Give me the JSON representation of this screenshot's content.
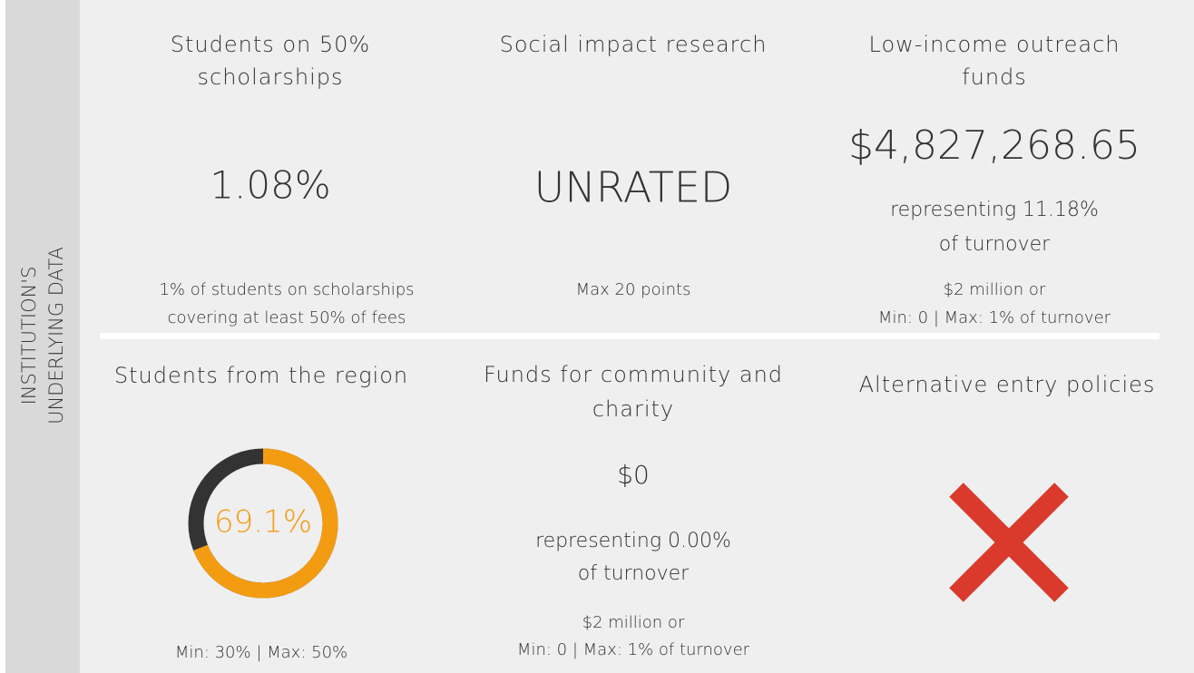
{
  "sidebar": {
    "lines": [
      "INSTITUTION'S",
      "UNDERLYING DATA"
    ]
  },
  "cards": [
    {
      "title": [
        "Students on 50%",
        "scholarships"
      ],
      "value": "1.08%",
      "footer": [
        "1% of students on scholarships",
        "covering at least 50% of fees"
      ]
    },
    {
      "title": [
        "Social impact research"
      ],
      "value": "UNRATED",
      "footer": [
        "Max 20 points"
      ]
    },
    {
      "title": [
        "Low-income outreach",
        "funds"
      ],
      "value": "$4,827,268.65",
      "sub": [
        "representing 11.18%",
        "of turnover"
      ],
      "footer": [
        "$2 million or",
        "Min: 0 | Max: 1% of turnover"
      ]
    },
    {
      "title": [
        "Students from the region"
      ],
      "donut": {
        "value": 69.1,
        "value_label": "69.1%",
        "color": "#f39c12",
        "track_color": "#333333"
      },
      "footer": [
        "Min: 30% | Max: 50%"
      ]
    },
    {
      "title": [
        "Funds for community and",
        "charity"
      ],
      "value": "$0",
      "sub": [
        "representing 0.00%",
        "of turnover"
      ],
      "footer": [
        "$2 million or",
        "Min: 0 | Max: 1% of turnover"
      ]
    },
    {
      "title": [
        "Alternative entry policies"
      ]
    }
  ]
}
